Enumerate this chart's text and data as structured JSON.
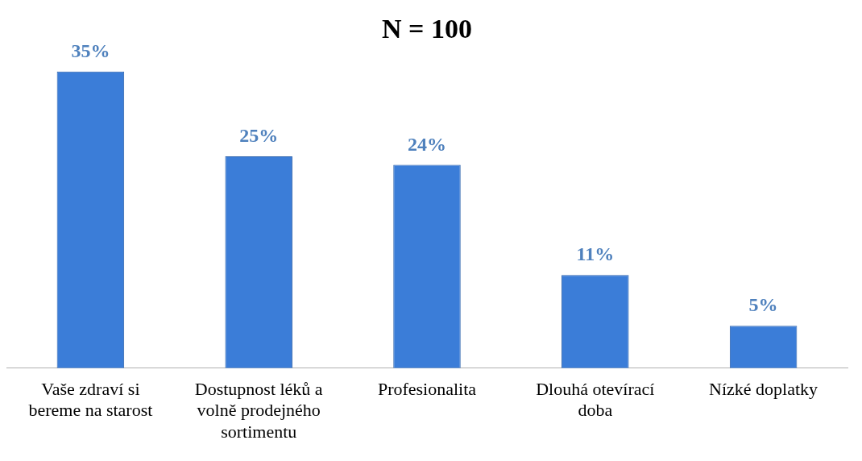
{
  "chart_data": {
    "type": "bar",
    "title": "N = 100",
    "categories": [
      "Vaše zdraví si bereme na starost",
      "Dostupnost léků a volně prodejného sortimentu",
      "Profesionalita",
      "Dlouhá otevírací doba",
      "Nízké doplatky"
    ],
    "values": [
      35,
      25,
      24,
      11,
      5
    ],
    "value_labels": [
      "35%",
      "25%",
      "24%",
      "11%",
      "5%"
    ],
    "color": "#3b7dd8",
    "grid": false,
    "legend": false
  }
}
